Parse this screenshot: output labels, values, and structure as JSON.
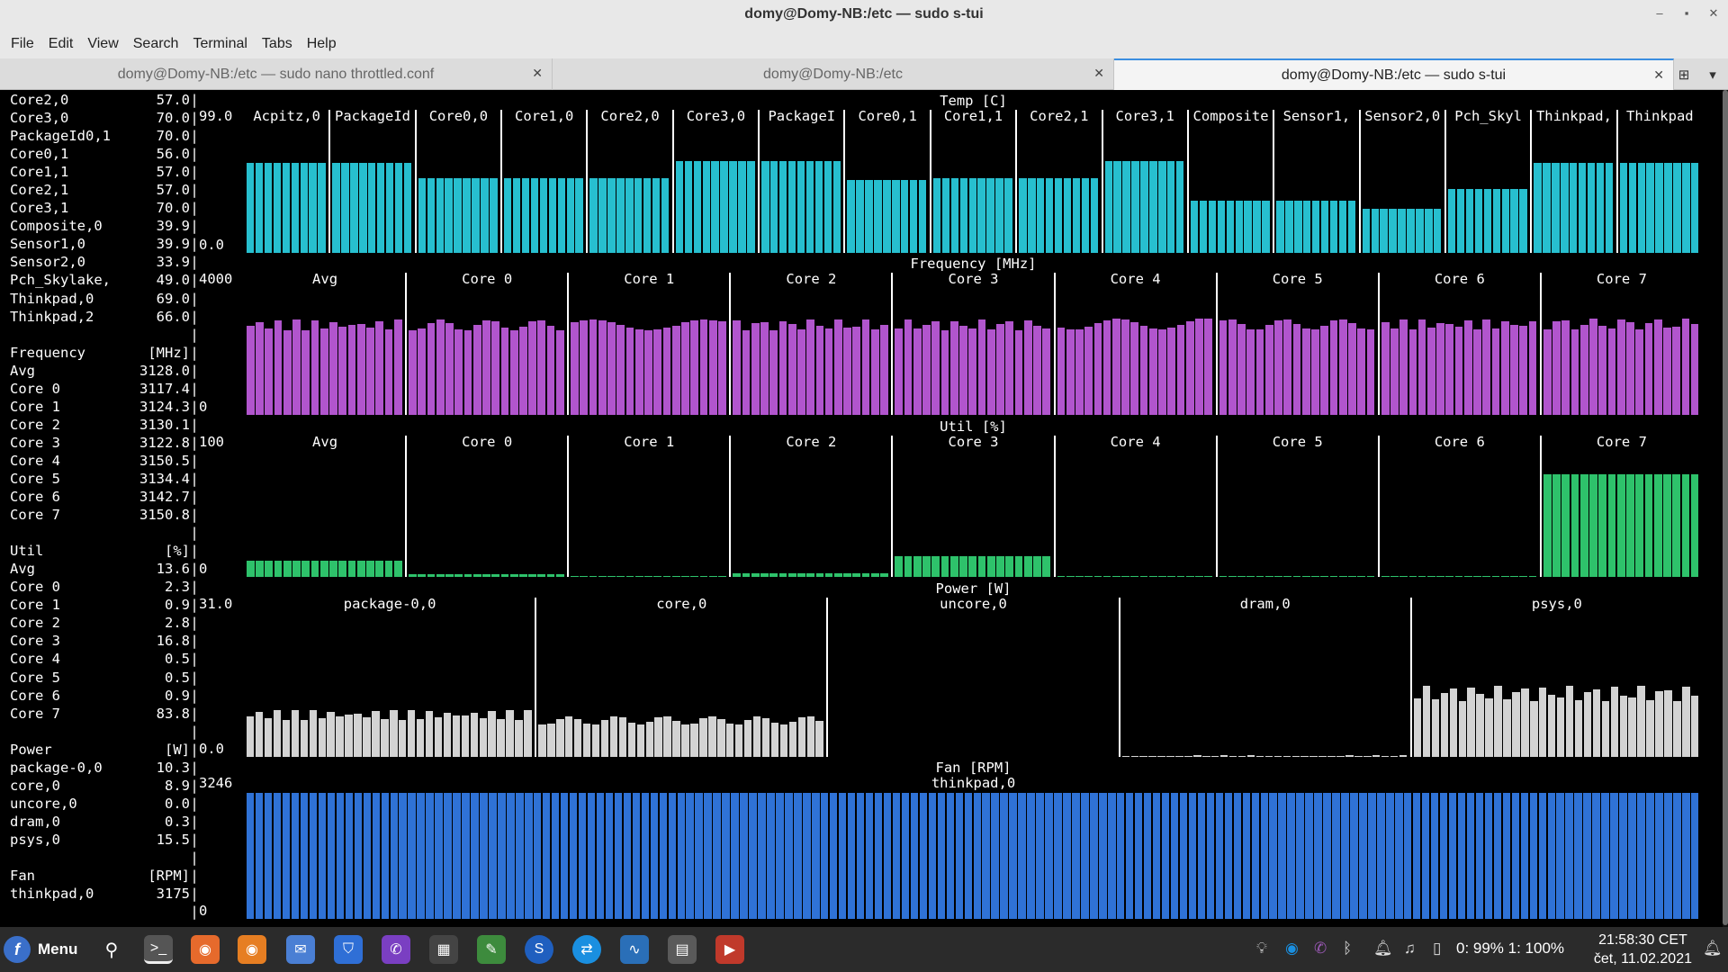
{
  "window": {
    "title": "domy@Domy-NB:/etc — sudo s-tui"
  },
  "menu": [
    "File",
    "Edit",
    "View",
    "Search",
    "Terminal",
    "Tabs",
    "Help"
  ],
  "tabs": [
    {
      "label": "domy@Domy-NB:/etc — sudo nano throttled.conf",
      "active": false
    },
    {
      "label": "domy@Domy-NB:/etc",
      "active": false
    },
    {
      "label": "domy@Domy-NB:/etc — sudo s-tui",
      "active": true
    }
  ],
  "sidebar": [
    {
      "name": "Core2,0",
      "value": "57.0"
    },
    {
      "name": "Core3,0",
      "value": "70.0"
    },
    {
      "name": "PackageId0,1",
      "value": "70.0"
    },
    {
      "name": "Core0,1",
      "value": "56.0"
    },
    {
      "name": "Core1,1",
      "value": "57.0"
    },
    {
      "name": "Core2,1",
      "value": "57.0"
    },
    {
      "name": "Core3,1",
      "value": "70.0"
    },
    {
      "name": "Composite,0",
      "value": "39.9"
    },
    {
      "name": "Sensor1,0",
      "value": "39.9"
    },
    {
      "name": "Sensor2,0",
      "value": "33.9"
    },
    {
      "name": "Pch_Skylake,",
      "value": "49.0"
    },
    {
      "name": "Thinkpad,0",
      "value": "69.0"
    },
    {
      "name": "Thinkpad,2",
      "value": "66.0"
    },
    {
      "name": "",
      "value": ""
    },
    {
      "name": "Frequency",
      "value": "[MHz]"
    },
    {
      "name": "Avg",
      "value": "3128.0"
    },
    {
      "name": "Core 0",
      "value": "3117.4"
    },
    {
      "name": "Core 1",
      "value": "3124.3"
    },
    {
      "name": "Core 2",
      "value": "3130.1"
    },
    {
      "name": "Core 3",
      "value": "3122.8"
    },
    {
      "name": "Core 4",
      "value": "3150.5"
    },
    {
      "name": "Core 5",
      "value": "3134.4"
    },
    {
      "name": "Core 6",
      "value": "3142.7"
    },
    {
      "name": "Core 7",
      "value": "3150.8"
    },
    {
      "name": "",
      "value": ""
    },
    {
      "name": "Util",
      "value": "[%]"
    },
    {
      "name": "Avg",
      "value": "13.6"
    },
    {
      "name": "Core 0",
      "value": "2.3"
    },
    {
      "name": "Core 1",
      "value": "0.9"
    },
    {
      "name": "Core 2",
      "value": "2.8"
    },
    {
      "name": "Core 3",
      "value": "16.8"
    },
    {
      "name": "Core 4",
      "value": "0.5"
    },
    {
      "name": "Core 5",
      "value": "0.5"
    },
    {
      "name": "Core 6",
      "value": "0.9"
    },
    {
      "name": "Core 7",
      "value": "83.8"
    },
    {
      "name": "",
      "value": ""
    },
    {
      "name": "Power",
      "value": "[W]"
    },
    {
      "name": "package-0,0",
      "value": "10.3"
    },
    {
      "name": "core,0",
      "value": "8.9"
    },
    {
      "name": "uncore,0",
      "value": "0.0"
    },
    {
      "name": "dram,0",
      "value": "0.3"
    },
    {
      "name": "psys,0",
      "value": "15.5"
    },
    {
      "name": "",
      "value": ""
    },
    {
      "name": "Fan",
      "value": "[RPM]"
    },
    {
      "name": "thinkpad,0",
      "value": "3175"
    },
    {
      "name": "",
      "value": ""
    }
  ],
  "chart_data": [
    {
      "type": "bar",
      "title": "Temp [C]",
      "ylim": [
        0.0,
        99.0
      ],
      "ymax_label": "99.0",
      "ymin_label": "0.0",
      "color": "#27bfcf",
      "categories": [
        "Acpitz,0",
        "PackageId",
        "Core0,0",
        "Core1,0",
        "Core2,0",
        "Core3,0",
        "PackageI",
        "Core0,1",
        "Core1,1",
        "Core2,1",
        "Core3,1",
        "Composite",
        "Sensor1,",
        "Sensor2,0",
        "Pch_Skyl",
        "Thinkpad,",
        "Thinkpad"
      ],
      "values": [
        69,
        69,
        57,
        57,
        57,
        70,
        70,
        56,
        57,
        57,
        70,
        40,
        40,
        34,
        49,
        69,
        69
      ]
    },
    {
      "type": "bar",
      "title": "Frequency [MHz]",
      "ylim": [
        0,
        4000
      ],
      "ymax_label": "4000",
      "ymin_label": "0",
      "color": "#b155cd",
      "categories": [
        "Avg",
        "Core 0",
        "Core 1",
        "Core 2",
        "Core 3",
        "Core 4",
        "Core 5",
        "Core 6",
        "Core 7"
      ],
      "values": [
        3128.0,
        3117.4,
        3124.3,
        3130.1,
        3122.8,
        3150.5,
        3134.4,
        3142.7,
        3150.8
      ]
    },
    {
      "type": "bar",
      "title": "Util [%]",
      "ylim": [
        0,
        100
      ],
      "ymax_label": "100",
      "ymin_label": "0",
      "color": "#2ec26b",
      "categories": [
        "Avg",
        "Core 0",
        "Core 1",
        "Core 2",
        "Core 3",
        "Core 4",
        "Core 5",
        "Core 6",
        "Core 7"
      ],
      "values": [
        13.6,
        2.3,
        0.9,
        2.8,
        16.8,
        0.5,
        0.5,
        0.9,
        83.8
      ]
    },
    {
      "type": "bar",
      "title": "Power [W]",
      "ylim": [
        0.0,
        31.0
      ],
      "ymax_label": "31.0",
      "ymin_label": "0.0",
      "color": "#d3d3d3",
      "categories": [
        "package-0,0",
        "core,0",
        "uncore,0",
        "dram,0",
        "psys,0"
      ],
      "values": [
        10.3,
        8.9,
        0.0,
        0.3,
        15.5
      ]
    },
    {
      "type": "bar",
      "title": "Fan [RPM]",
      "ylim": [
        0,
        3246
      ],
      "ymax_label": "3246",
      "ymin_label": "0",
      "color": "#2f72d6",
      "categories": [
        "thinkpad,0"
      ],
      "values": [
        3175
      ]
    }
  ],
  "taskbar": {
    "menu_label": "Menu",
    "battery": "0: 99%  1: 100%",
    "time": "21:58:30 CET",
    "date": "čet, 11.02.2021"
  }
}
